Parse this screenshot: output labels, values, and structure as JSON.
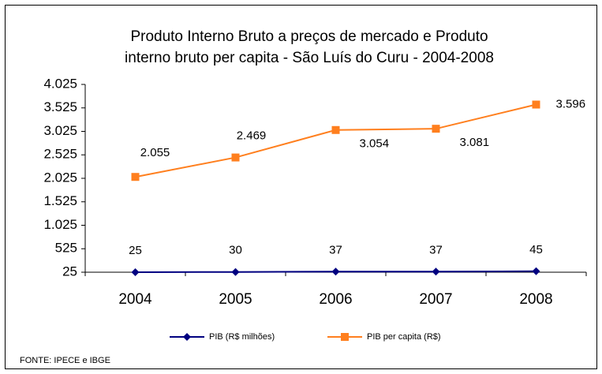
{
  "chart_data": {
    "type": "line",
    "title": [
      "Produto Interno Bruto a preços de mercado e  Produto",
      "interno bruto per capita  - São Luís do Curu - 2004-2008"
    ],
    "categories": [
      "2004",
      "2005",
      "2006",
      "2007",
      "2008"
    ],
    "series": [
      {
        "name": "PIB (R$ milhões)",
        "color": "#000080",
        "marker": "diamond",
        "values": [
          25,
          30,
          37,
          37,
          45
        ]
      },
      {
        "name": "PIB per capita (R$)",
        "color": "#ff7f1e",
        "marker": "square",
        "values": [
          2055,
          2469,
          3054,
          3081,
          3596
        ],
        "value_labels": [
          "2.055",
          "2.469",
          "3.054",
          "3.081",
          "3.596"
        ]
      }
    ],
    "ylim": [
      25,
      4025
    ],
    "yticks": [
      25,
      525,
      {
        "value": 1025,
        "label": "1.025"
      },
      {
        "value": 1525,
        "label": "1.525"
      },
      {
        "value": 2025,
        "label": "2.025"
      },
      {
        "value": 2525,
        "label": "2.525"
      },
      {
        "value": 3025,
        "label": "3.025"
      },
      {
        "value": 3525,
        "label": "3.525"
      },
      {
        "value": 4025,
        "label": "4.025"
      }
    ],
    "grid": false,
    "legend": "bottom",
    "source": "FONTE: IPECE e IBGE"
  }
}
